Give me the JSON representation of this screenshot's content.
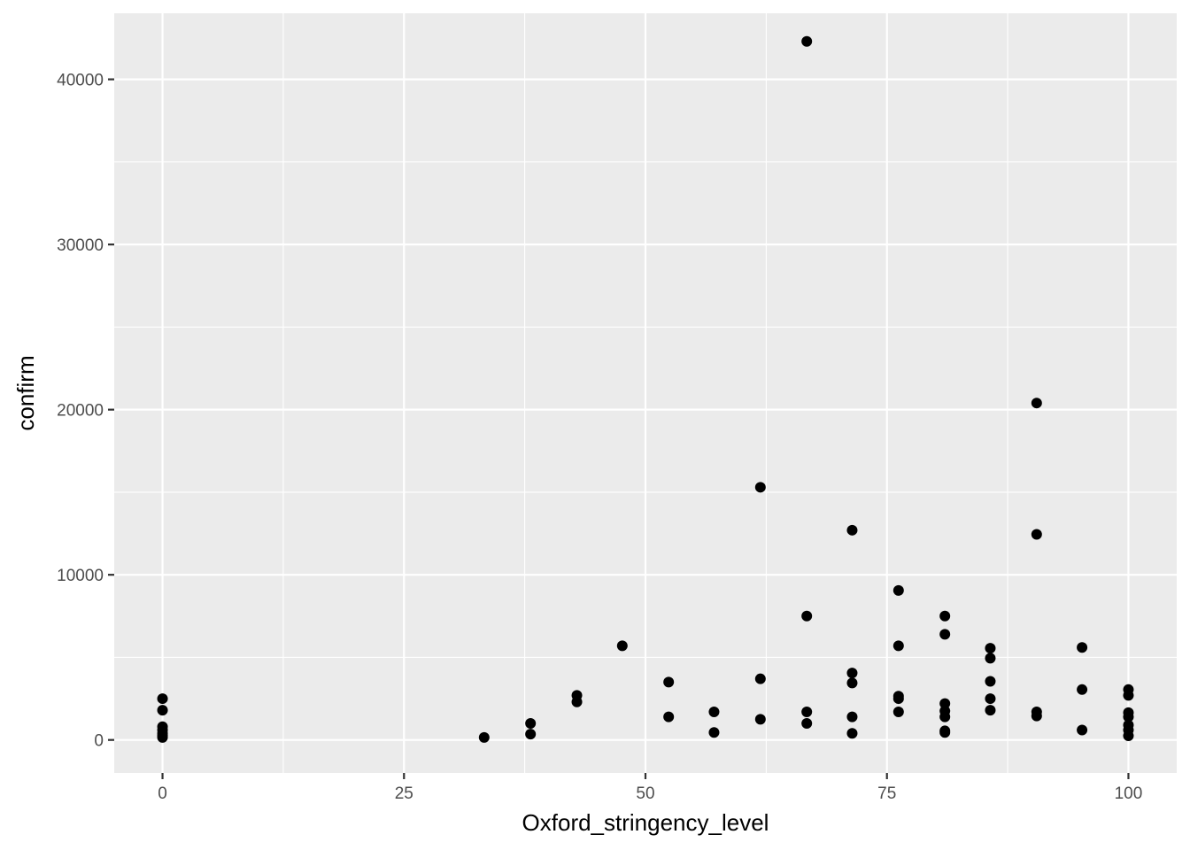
{
  "chart_data": {
    "type": "scatter",
    "xlabel": "Oxford_stringency_level",
    "ylabel": "confirm",
    "xlim": [
      -5,
      105
    ],
    "ylim": [
      -2000,
      44000
    ],
    "x_ticks": [
      0,
      25,
      50,
      75,
      100
    ],
    "x_tick_labels": [
      "0",
      "25",
      "50",
      "75",
      "100"
    ],
    "x_minor_ticks": [
      12.5,
      37.5,
      62.5,
      87.5
    ],
    "y_ticks": [
      0,
      10000,
      20000,
      30000,
      40000
    ],
    "y_tick_labels": [
      "0",
      "10000",
      "20000",
      "30000",
      "40000"
    ],
    "y_minor_ticks": [
      5000,
      15000,
      25000,
      35000
    ],
    "grid": true,
    "colors": {
      "panel_background": "#ebebeb",
      "grid": "#ffffff",
      "point": "#000000"
    },
    "points": [
      {
        "x": 0,
        "y": 2500
      },
      {
        "x": 0,
        "y": 1800
      },
      {
        "x": 0,
        "y": 800
      },
      {
        "x": 0,
        "y": 600
      },
      {
        "x": 0,
        "y": 400
      },
      {
        "x": 0,
        "y": 250
      },
      {
        "x": 0,
        "y": 150
      },
      {
        "x": 33.3,
        "y": 150
      },
      {
        "x": 38.1,
        "y": 1000
      },
      {
        "x": 38.1,
        "y": 350
      },
      {
        "x": 42.9,
        "y": 2700
      },
      {
        "x": 42.9,
        "y": 2300
      },
      {
        "x": 47.6,
        "y": 5700
      },
      {
        "x": 52.4,
        "y": 3500
      },
      {
        "x": 52.4,
        "y": 1400
      },
      {
        "x": 57.1,
        "y": 1700
      },
      {
        "x": 57.1,
        "y": 450
      },
      {
        "x": 61.9,
        "y": 15300
      },
      {
        "x": 61.9,
        "y": 3700
      },
      {
        "x": 61.9,
        "y": 1250
      },
      {
        "x": 66.7,
        "y": 42300
      },
      {
        "x": 66.7,
        "y": 7500
      },
      {
        "x": 66.7,
        "y": 1700
      },
      {
        "x": 66.7,
        "y": 1000
      },
      {
        "x": 71.4,
        "y": 12700
      },
      {
        "x": 71.4,
        "y": 4050
      },
      {
        "x": 71.4,
        "y": 3450
      },
      {
        "x": 71.4,
        "y": 1400
      },
      {
        "x": 71.4,
        "y": 400
      },
      {
        "x": 76.2,
        "y": 9050
      },
      {
        "x": 76.2,
        "y": 5700
      },
      {
        "x": 76.2,
        "y": 2650
      },
      {
        "x": 76.2,
        "y": 2500
      },
      {
        "x": 76.2,
        "y": 1700
      },
      {
        "x": 81,
        "y": 7500
      },
      {
        "x": 81,
        "y": 6400
      },
      {
        "x": 81,
        "y": 2200
      },
      {
        "x": 81,
        "y": 1750
      },
      {
        "x": 81,
        "y": 1400
      },
      {
        "x": 81,
        "y": 550
      },
      {
        "x": 81,
        "y": 450
      },
      {
        "x": 85.7,
        "y": 5550
      },
      {
        "x": 85.7,
        "y": 4950
      },
      {
        "x": 85.7,
        "y": 3550
      },
      {
        "x": 85.7,
        "y": 2500
      },
      {
        "x": 85.7,
        "y": 1800
      },
      {
        "x": 90.5,
        "y": 20400
      },
      {
        "x": 90.5,
        "y": 12450
      },
      {
        "x": 90.5,
        "y": 1700
      },
      {
        "x": 90.5,
        "y": 1450
      },
      {
        "x": 95.2,
        "y": 5600
      },
      {
        "x": 95.2,
        "y": 3050
      },
      {
        "x": 95.2,
        "y": 600
      },
      {
        "x": 100,
        "y": 3050
      },
      {
        "x": 100,
        "y": 2700
      },
      {
        "x": 100,
        "y": 1650
      },
      {
        "x": 100,
        "y": 1400
      },
      {
        "x": 100,
        "y": 900
      },
      {
        "x": 100,
        "y": 600
      },
      {
        "x": 100,
        "y": 250
      }
    ]
  }
}
